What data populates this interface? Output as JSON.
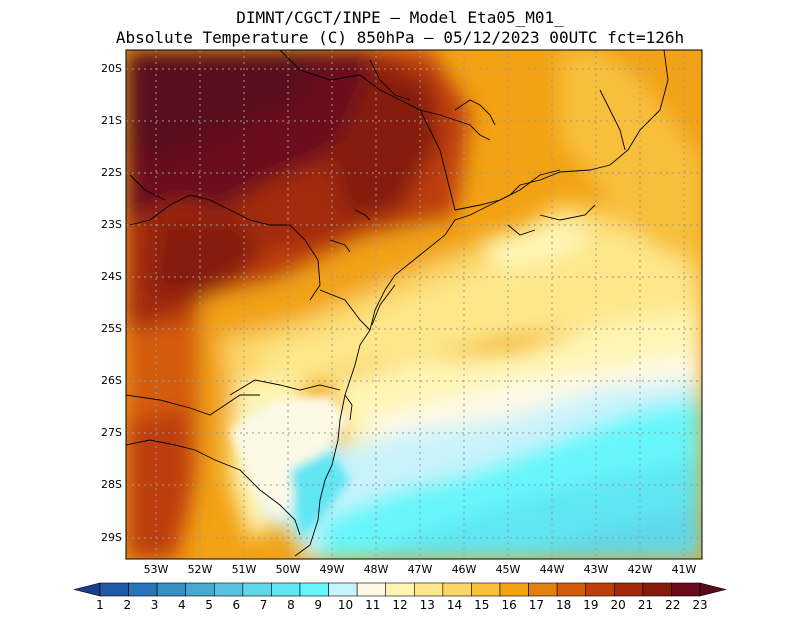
{
  "title": {
    "line1": "DIMNT/CGCT/INPE –  Model Eta05_M01_",
    "line2": "Absolute Temperature (C) 850hPa –  05/12/2023 00UTC fct=126h"
  },
  "latitude_labels": [
    "20S",
    "21S",
    "22S",
    "23S",
    "24S",
    "25S",
    "26S",
    "27S",
    "28S",
    "29S"
  ],
  "longitude_labels": [
    "53W",
    "52W",
    "51W",
    "50W",
    "49W",
    "48W",
    "47W",
    "46W",
    "45W",
    "44W",
    "43W",
    "42W",
    "41W"
  ],
  "colorbar": {
    "labels": [
      "1",
      "2",
      "3",
      "4",
      "5",
      "6",
      "7",
      "8",
      "9",
      "10",
      "11",
      "12",
      "13",
      "14",
      "15",
      "16",
      "17",
      "18",
      "19",
      "20",
      "21",
      "22",
      "23"
    ],
    "colors": [
      "#1c3e8c",
      "#2159a6",
      "#2a74b8",
      "#3690c4",
      "#48a8d0",
      "#58c2de",
      "#5ed8ea",
      "#5fe6f2",
      "#66f6fa",
      "#c9f3fb",
      "#fdf9e6",
      "#fef5b4",
      "#fde78a",
      "#fbd566",
      "#f8bf3a",
      "#f2a213",
      "#e37f10",
      "#d45c0c",
      "#bd3e0a",
      "#a2290b",
      "#861b0c",
      "#6b0b1b",
      "#5a0a1a"
    ]
  }
}
